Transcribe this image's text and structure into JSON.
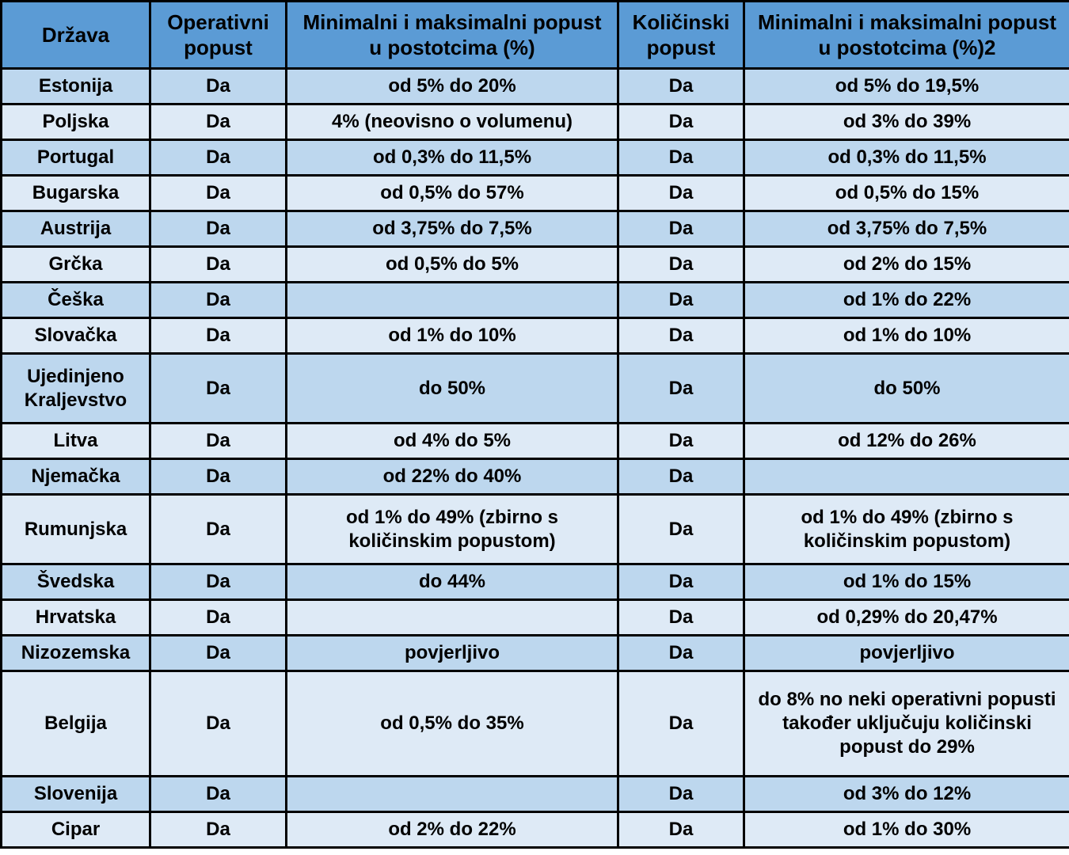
{
  "chart_data": {
    "type": "table",
    "title": "",
    "headers": [
      "Država",
      "Operativni popust",
      "Minimalni i maksimalni popust u postotcima (%)",
      "Količinski popust",
      "Minimalni i maksimalni popust u postotcima (%)2"
    ],
    "rows": [
      [
        "Estonija",
        "Da",
        "od 5% do 20%",
        "Da",
        "od 5% do 19,5%"
      ],
      [
        "Poljska",
        "Da",
        "4% (neovisno o volumenu)",
        "Da",
        "od 3% do 39%"
      ],
      [
        "Portugal",
        "Da",
        "od 0,3% do 11,5%",
        "Da",
        "od 0,3% do 11,5%"
      ],
      [
        "Bugarska",
        "Da",
        "od 0,5% do 57%",
        "Da",
        "od 0,5% do 15%"
      ],
      [
        "Austrija",
        "Da",
        "od 3,75% do 7,5%",
        "Da",
        "od 3,75% do 7,5%"
      ],
      [
        "Grčka",
        "Da",
        "od 0,5% do 5%",
        "Da",
        "od 2% do 15%"
      ],
      [
        "Češka",
        "Da",
        "",
        "Da",
        "od 1% do 22%"
      ],
      [
        "Slovačka",
        "Da",
        "od 1% do 10%",
        "Da",
        "od 1% do 10%"
      ],
      [
        "Ujedinjeno Kraljevstvo",
        "Da",
        "do 50%",
        "Da",
        "do 50%"
      ],
      [
        "Litva",
        "Da",
        "od 4% do 5%",
        "Da",
        "od 12% do 26%"
      ],
      [
        "Njemačka",
        "Da",
        "od 22% do 40%",
        "Da",
        ""
      ],
      [
        "Rumunjska",
        "Da",
        "od 1% do 49% (zbirno s količinskim popustom)",
        "Da",
        "od 1% do 49% (zbirno s količinskim popustom)"
      ],
      [
        "Švedska",
        "Da",
        "do 44%",
        "Da",
        "od 1% do 15%"
      ],
      [
        "Hrvatska",
        "Da",
        "",
        "Da",
        "od 0,29% do 20,47%"
      ],
      [
        "Nizozemska",
        "Da",
        "povjerljivo",
        "Da",
        "povjerljivo"
      ],
      [
        "Belgija",
        "Da",
        "od 0,5% do 35%",
        "Da",
        "do 8% no neki operativni popusti također uključuju količinski popust do 29%"
      ],
      [
        "Slovenija",
        "Da",
        "",
        "Da",
        "od 3% do 12%"
      ],
      [
        "Cipar",
        "Da",
        "od 2% do 22%",
        "Da",
        "od 1% do 30%"
      ]
    ],
    "layout_hints": {
      "grid": true,
      "alternating_rows": true,
      "all_text_bold": true,
      "alignment": "center"
    },
    "colors": {
      "header_bg": "#5b9bd5",
      "row_alt_dark": "#bdd7ee",
      "row_alt_light": "#deeaf6",
      "border": "#000000",
      "text": "#000000"
    }
  }
}
